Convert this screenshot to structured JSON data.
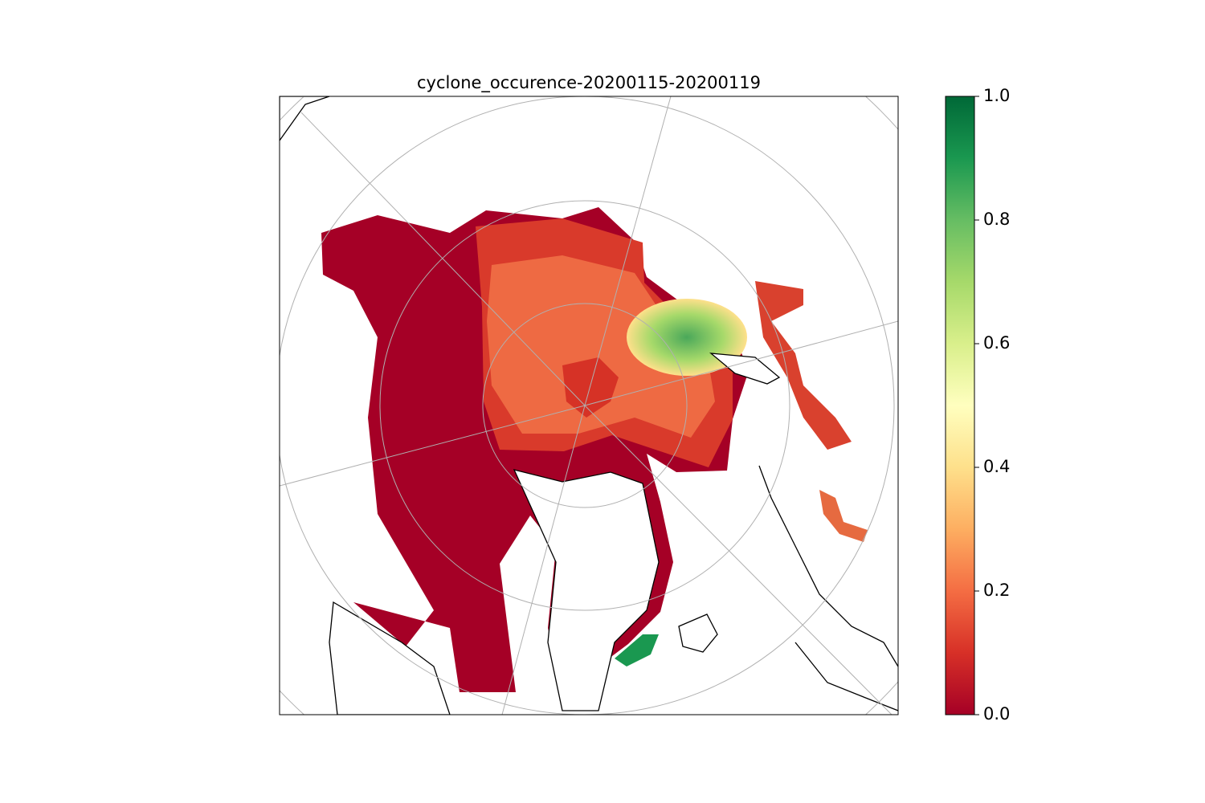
{
  "chart_data": {
    "type": "map",
    "title": "cyclone_occurence-20200115-20200119",
    "colorbar_lim": [
      0,
      1
    ],
    "colorbar_ticks": [
      {
        "value": 0,
        "label": "0.0"
      },
      0.2,
      0.4,
      0.6,
      0.8,
      {
        "value": 1,
        "label": "1.0"
      }
    ]
  }
}
